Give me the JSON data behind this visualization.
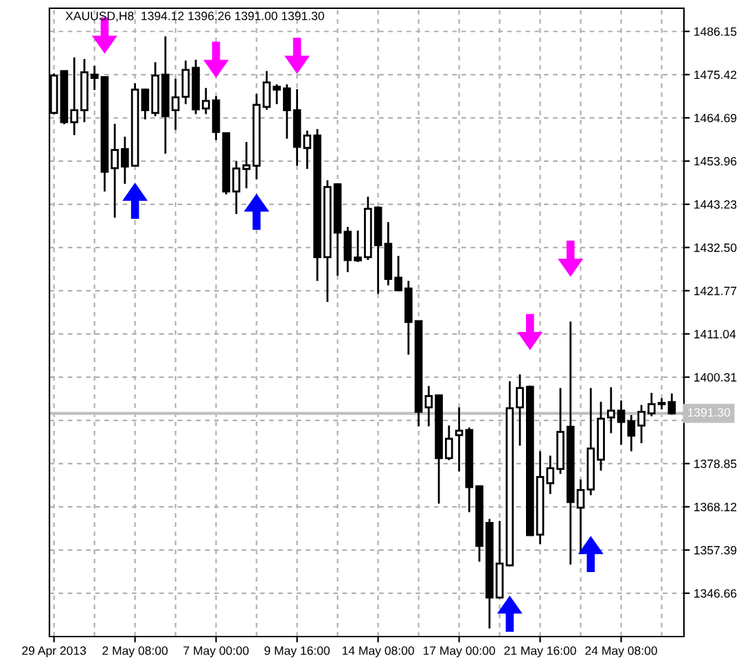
{
  "chart_data": {
    "type": "candlestick",
    "title": "XAUUSD,H8  1394.12 1396.26 1391.00 1391.30",
    "categories": [
      "29 Apr 2013",
      null,
      null,
      null,
      null,
      null,
      null,
      null,
      "2 May 08:00",
      null,
      null,
      null,
      null,
      null,
      null,
      null,
      "7 May 00:00",
      null,
      null,
      null,
      null,
      null,
      null,
      null,
      "9 May 16:00",
      null,
      null,
      null,
      null,
      null,
      null,
      null,
      "14 May 08:00",
      null,
      null,
      null,
      null,
      null,
      null,
      null,
      "17 May 00:00",
      null,
      null,
      null,
      null,
      null,
      null,
      null,
      "21 May 16:00",
      null,
      null,
      null,
      null,
      null,
      null,
      null,
      "24 May 08:00",
      null,
      null,
      null,
      null,
      null
    ],
    "ohlc": [
      [
        1465.9,
        1475.7,
        1465.6,
        1475.2
      ],
      [
        1476.3,
        1476.4,
        1463.1,
        1463.6
      ],
      [
        1463.6,
        1479.7,
        1460.4,
        1466.6
      ],
      [
        1466.6,
        1479.3,
        1463.6,
        1476.0
      ],
      [
        1475.4,
        1477.6,
        1471.6,
        1474.6
      ],
      [
        1474.8,
        1475.0,
        1446.4,
        1451.3
      ],
      [
        1452.2,
        1463.2,
        1439.9,
        1456.7
      ],
      [
        1456.9,
        1460.0,
        1448.3,
        1452.6
      ],
      [
        1452.8,
        1473.3,
        1452.6,
        1471.7
      ],
      [
        1471.7,
        1471.9,
        1464.3,
        1466.6
      ],
      [
        1465.9,
        1478.5,
        1465.1,
        1475.2
      ],
      [
        1475.4,
        1484.9,
        1455.8,
        1465.1
      ],
      [
        1466.6,
        1474.4,
        1461.7,
        1469.8
      ],
      [
        1469.9,
        1478.9,
        1468.1,
        1476.6
      ],
      [
        1477.1,
        1479.1,
        1465.6,
        1466.8
      ],
      [
        1467.0,
        1472.1,
        1465.6,
        1468.9
      ],
      [
        1469.0,
        1470.1,
        1459.2,
        1461.2
      ],
      [
        1460.9,
        1461.0,
        1445.7,
        1446.4
      ],
      [
        1446.4,
        1453.9,
        1440.8,
        1452.1
      ],
      [
        1452.0,
        1458.7,
        1447.2,
        1452.9
      ],
      [
        1452.8,
        1470.6,
        1449.4,
        1467.9
      ],
      [
        1467.4,
        1476.3,
        1466.7,
        1473.5
      ],
      [
        1472.4,
        1473.0,
        1468.1,
        1471.7
      ],
      [
        1472.0,
        1473.0,
        1459.5,
        1466.6
      ],
      [
        1466.6,
        1471.8,
        1452.8,
        1457.5
      ],
      [
        1457.2,
        1461.5,
        1452.0,
        1460.3
      ],
      [
        1460.3,
        1461.9,
        1424.2,
        1430.1
      ],
      [
        1430.1,
        1449.2,
        1419.0,
        1447.5
      ],
      [
        1448.2,
        1448.4,
        1425.5,
        1436.2
      ],
      [
        1436.4,
        1437.6,
        1426.4,
        1429.4
      ],
      [
        1430.0,
        1436.7,
        1428.9,
        1429.3
      ],
      [
        1430.1,
        1445.1,
        1429.4,
        1442.1
      ],
      [
        1442.4,
        1442.6,
        1421.0,
        1433.1
      ],
      [
        1433.4,
        1438.8,
        1423.1,
        1424.7
      ],
      [
        1425.0,
        1430.4,
        1421.7,
        1421.9
      ],
      [
        1422.3,
        1424.2,
        1405.9,
        1414.0
      ],
      [
        1414.2,
        1414.4,
        1388.1,
        1391.7
      ],
      [
        1392.8,
        1398.1,
        1388.1,
        1395.6
      ],
      [
        1395.8,
        1396.0,
        1368.9,
        1380.2
      ],
      [
        1380.2,
        1388.3,
        1379.7,
        1385.0
      ],
      [
        1385.9,
        1392.8,
        1376.9,
        1387.0
      ],
      [
        1387.2,
        1387.8,
        1366.8,
        1373.0
      ],
      [
        1373.2,
        1373.4,
        1354.5,
        1358.4
      ],
      [
        1364.1,
        1365.1,
        1337.9,
        1345.6
      ],
      [
        1345.6,
        1364.6,
        1345.4,
        1354.0
      ],
      [
        1353.6,
        1399.3,
        1353.3,
        1392.6
      ],
      [
        1392.8,
        1401.0,
        1383.3,
        1397.6
      ],
      [
        1397.9,
        1398.2,
        1360.9,
        1361.1
      ],
      [
        1361.2,
        1381.9,
        1358.9,
        1375.5
      ],
      [
        1374.0,
        1380.8,
        1371.3,
        1377.7
      ],
      [
        1377.5,
        1397.6,
        1376.3,
        1386.7
      ],
      [
        1388.0,
        1414.1,
        1353.8,
        1369.3
      ],
      [
        1367.9,
        1374.9,
        1356.4,
        1372.3
      ],
      [
        1372.4,
        1397.6,
        1371.0,
        1382.6
      ],
      [
        1379.8,
        1394.2,
        1377.1,
        1390.0
      ],
      [
        1390.3,
        1397.8,
        1386.4,
        1392.0
      ],
      [
        1392.0,
        1394.5,
        1383.5,
        1389.2
      ],
      [
        1389.4,
        1390.9,
        1381.9,
        1385.8
      ],
      [
        1388.3,
        1393.4,
        1383.9,
        1391.7
      ],
      [
        1391.3,
        1396.4,
        1390.6,
        1393.6
      ],
      [
        1393.6,
        1395.1,
        1392.3,
        1393.9
      ],
      [
        1394.12,
        1396.26,
        1391.0,
        1391.3
      ]
    ],
    "series": [
      {
        "type": "scatter",
        "color": "#ff00ff",
        "marker": "triangle",
        "values": [
          null,
          null,
          null,
          null,
          null,
          1485.1,
          null,
          null,
          null,
          null,
          null,
          null,
          null,
          null,
          null,
          null,
          1479.1,
          null,
          null,
          null,
          null,
          null,
          null,
          null,
          1480.1,
          null,
          null,
          null,
          null,
          null,
          null,
          null,
          null,
          null,
          null,
          null,
          null,
          null,
          null,
          null,
          null,
          null,
          null,
          null,
          null,
          null,
          null,
          1411.5,
          null,
          null,
          null,
          1429.7,
          null,
          null,
          null,
          null,
          null,
          null,
          null,
          null,
          null,
          null
        ]
      },
      {
        "type": "scatter",
        "color": "#0000ff",
        "marker": "triangle",
        "values": [
          null,
          null,
          null,
          null,
          null,
          null,
          null,
          null,
          1444.1,
          null,
          null,
          null,
          null,
          null,
          null,
          null,
          null,
          null,
          null,
          null,
          1441.4,
          null,
          null,
          null,
          null,
          null,
          null,
          null,
          null,
          null,
          null,
          null,
          null,
          null,
          null,
          null,
          null,
          null,
          null,
          null,
          null,
          null,
          null,
          null,
          null,
          1341.6,
          null,
          null,
          null,
          null,
          null,
          null,
          null,
          1356.4,
          null,
          null,
          null,
          null,
          null,
          null,
          null,
          null
        ]
      }
    ],
    "ylim": [
      1335.9,
      1491.9
    ],
    "yticks": [
      1486.15,
      1475.42,
      1464.69,
      1453.96,
      1443.23,
      {
        "value": 1432.5,
        "label": "1432.50"
      },
      1421.77,
      1411.04,
      1400.31,
      {
        "value": 1389.58,
        "label": null
      },
      1378.85,
      1368.12,
      1357.39,
      1346.66
    ],
    "ref_lines": [
      {
        "axis": "y",
        "value": 1391.3,
        "label": "1391.30",
        "color": "#c0c0c0"
      }
    ],
    "grid": true
  }
}
